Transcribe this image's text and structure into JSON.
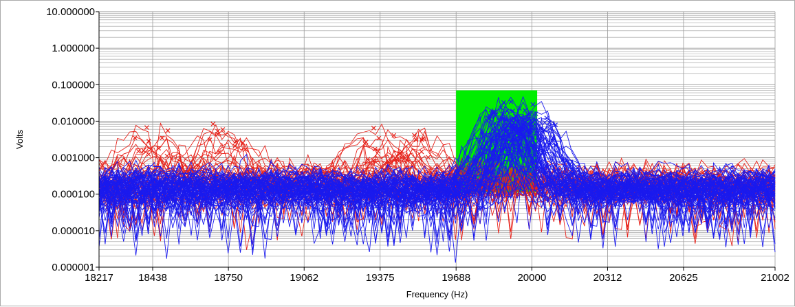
{
  "chart_data": {
    "type": "line",
    "title": "",
    "xlabel": "Frequency (Hz)",
    "ylabel": "Volts",
    "xlim": [
      18217,
      21002
    ],
    "ylim": [
      1e-06,
      10
    ],
    "yscale": "log",
    "grid": true,
    "legend": "none",
    "x_ticks": [
      18217,
      18438,
      18750,
      19062,
      19375,
      19688,
      20000,
      20312,
      20625,
      21002
    ],
    "x_tick_labels": [
      "18217",
      "18438",
      "18750",
      "19062",
      "19375",
      "19688",
      "20000",
      "20312",
      "20625",
      "21002"
    ],
    "y_ticks": [
      1e-06,
      1e-05,
      0.0001,
      0.001,
      0.01,
      0.1,
      1,
      10
    ],
    "y_tick_labels": [
      "0.000001",
      "0.000010",
      "0.000100",
      "0.001000",
      "0.010000",
      "0.100000",
      "1.000000",
      "10.000000"
    ],
    "highlight_region": {
      "x": [
        19688,
        20022
      ],
      "y": [
        0.00011,
        0.07
      ],
      "color": "#00ee00"
    },
    "colors": {
      "red_series": "#e8231b",
      "blue_series": "#1a1aee",
      "grid": "#9a9a9a",
      "frame": "#a9a9a9"
    },
    "series_groups": [
      {
        "color": "red",
        "count": 40,
        "peaks": [
          {
            "x": 18438,
            "y": 0.0045
          },
          {
            "x": 18750,
            "y": 0.0058
          },
          {
            "x": 19375,
            "y": 0.0033
          },
          {
            "x": 19500,
            "y": 0.0038
          }
        ],
        "baseline": 0.0002
      },
      {
        "color": "blue",
        "count": 80,
        "peaks": [
          {
            "x": 19938,
            "y": 0.018
          },
          {
            "x": 19900,
            "y": 0.012
          },
          {
            "x": 20000,
            "y": 0.01
          }
        ],
        "baseline": 0.00015
      }
    ]
  }
}
